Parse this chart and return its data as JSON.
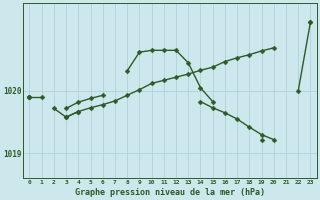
{
  "title": "Graphe pression niveau de la mer (hPa)",
  "bg_color": "#cce8ed",
  "grid_color": "#aacdd4",
  "line_color": "#2d5a27",
  "label_color": "#2d5a27",
  "hours": [
    0,
    1,
    2,
    3,
    4,
    5,
    6,
    7,
    8,
    9,
    10,
    11,
    12,
    13,
    14,
    15,
    16,
    17,
    18,
    19,
    20,
    21,
    22,
    23
  ],
  "s1": [
    1019.9,
    1019.9,
    null,
    1019.72,
    1019.82,
    1019.88,
    1019.93,
    null,
    1020.32,
    1020.62,
    1020.65,
    1020.65,
    1020.65,
    1020.45,
    1020.05,
    1019.83,
    null,
    null,
    null,
    1019.22,
    null,
    null,
    1020.0,
    1021.1
  ],
  "s2": [
    1019.9,
    null,
    1019.72,
    1019.58,
    1019.67,
    null,
    null,
    null,
    null,
    null,
    null,
    null,
    null,
    null,
    1019.83,
    1019.73,
    1019.65,
    1019.55,
    1019.42,
    1019.3,
    1019.22,
    null,
    null,
    null
  ],
  "s3": [
    1019.9,
    null,
    null,
    1019.58,
    1019.67,
    1019.73,
    1019.78,
    1019.84,
    1019.93,
    1020.02,
    1020.12,
    1020.17,
    1020.22,
    1020.27,
    1020.33,
    1020.38,
    1020.47,
    1020.53,
    1020.58,
    1020.64,
    1020.69,
    null,
    null,
    1021.1
  ],
  "ylim": [
    1018.6,
    1021.4
  ],
  "yticks": [
    1019,
    1020
  ],
  "xlim": [
    -0.5,
    23.5
  ]
}
